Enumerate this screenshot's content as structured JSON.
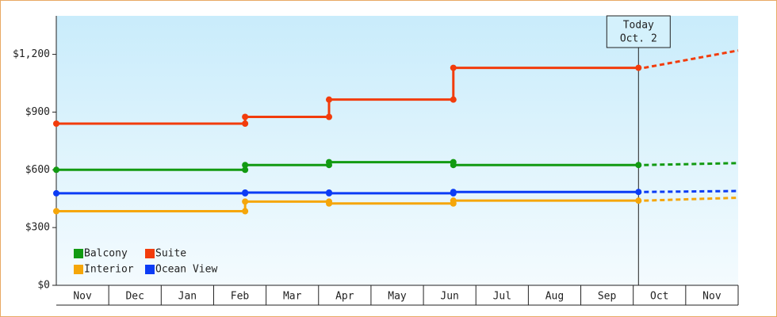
{
  "chart_data": {
    "type": "step-line",
    "categories": [
      "Nov",
      "Dec",
      "Jan",
      "Feb",
      "Mar",
      "Apr",
      "May",
      "Jun",
      "Jul",
      "Aug",
      "Sep",
      "Oct",
      "Nov"
    ],
    "xlim": [
      0,
      13
    ],
    "ylim": [
      0,
      1400
    ],
    "yticks": [
      {
        "value": 0,
        "label": "$0"
      },
      {
        "value": 300,
        "label": "$300"
      },
      {
        "value": 600,
        "label": "$600"
      },
      {
        "value": 900,
        "label": "$900"
      },
      {
        "value": 1200,
        "label": "$1,200"
      }
    ],
    "x": [
      0,
      3.6,
      3.6,
      5.2,
      5.2,
      7.57,
      7.57,
      11.1
    ],
    "forecast_x": [
      11.1,
      13
    ],
    "series": [
      {
        "name": "Balcony",
        "color": "#129a12",
        "values": [
          600,
          600,
          625,
          625,
          640,
          640,
          625,
          625
        ],
        "forecast_values": [
          625,
          635
        ]
      },
      {
        "name": "Suite",
        "color": "#f23c0c",
        "values": [
          840,
          840,
          875,
          875,
          965,
          965,
          1130,
          1130
        ],
        "forecast_values": [
          1130,
          1220
        ]
      },
      {
        "name": "Interior",
        "color": "#f5a60a",
        "values": [
          385,
          385,
          435,
          435,
          425,
          425,
          440,
          440
        ],
        "forecast_values": [
          440,
          455
        ]
      },
      {
        "name": "Ocean View",
        "color": "#0c3cf5",
        "values": [
          478,
          478,
          482,
          482,
          478,
          478,
          485,
          485
        ],
        "forecast_values": [
          485,
          490
        ]
      }
    ],
    "annotation": {
      "x": 11.1,
      "lines": [
        "Today",
        "Oct. 2"
      ]
    }
  }
}
